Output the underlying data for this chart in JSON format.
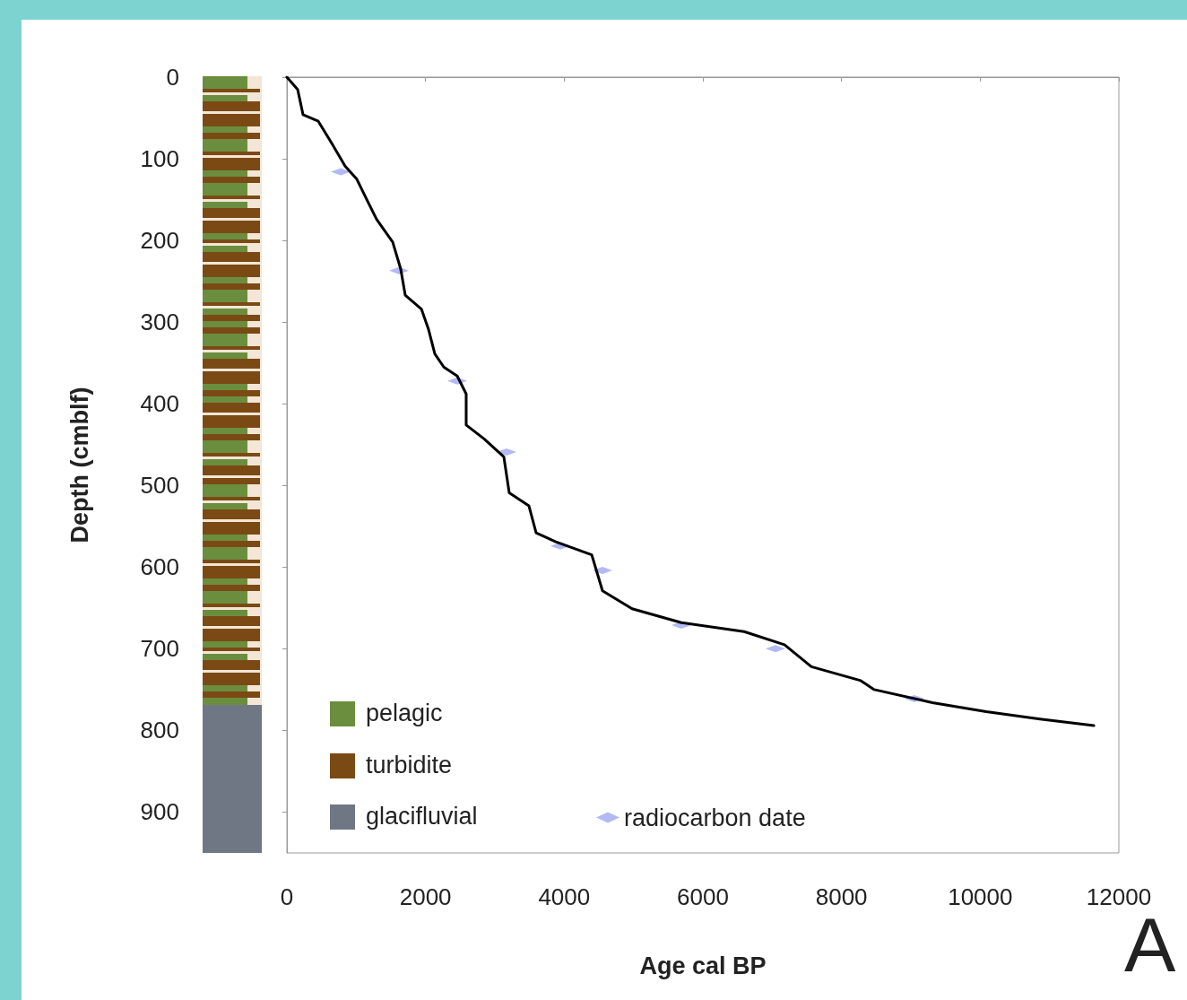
{
  "chart_data": {
    "type": "line",
    "xlabel": "Age cal BP",
    "ylabel": "Depth (cmblf)",
    "annotations": [
      "pelagic",
      "turbidite",
      "glacifluvial",
      "A"
    ],
    "xlim": [
      0,
      12000
    ],
    "xticks": [
      0,
      2000,
      4000,
      6000,
      8000,
      10000,
      12000
    ],
    "ylim": [
      950,
      0
    ],
    "yticks": [
      0,
      100,
      200,
      300,
      400,
      500,
      600,
      700,
      800,
      900
    ],
    "grid": false,
    "legend": "bottom",
    "line_style": "solid",
    "series": [
      {
        "type": "line",
        "color": "#000000",
        "marker": "none",
        "x": [
          0,
          155,
          233,
          453,
          647,
          840,
          1009,
          1164,
          1293,
          1526,
          1642,
          1707,
          1940,
          2043,
          2134,
          2263,
          2457,
          2586,
          2586,
          2845,
          3129,
          3207,
          3491,
          3595,
          3879,
          4397,
          4552,
          4979,
          5690,
          6595,
          7177,
          7565,
          8277,
          8471,
          9311,
          10087,
          10863,
          11639
        ],
        "values": [
          0,
          15,
          46,
          54,
          81,
          109,
          125,
          152,
          174,
          202,
          235,
          267,
          284,
          309,
          339,
          355,
          366,
          388,
          426,
          443,
          465,
          509,
          525,
          558,
          569,
          585,
          629,
          651,
          668,
          679,
          695,
          722,
          739,
          750,
          766,
          777,
          786,
          794
        ]
      },
      {
        "type": "scatter",
        "name": "radiocarbon date",
        "color": "#9fa8f0",
        "marker": "diamond",
        "x": [
          776,
          1616,
          2457,
          3168,
          3944,
          4552,
          5690,
          7047,
          9052
        ],
        "values": [
          116,
          237,
          372,
          459,
          574,
          604,
          671,
          700,
          761
        ]
      }
    ]
  }
}
